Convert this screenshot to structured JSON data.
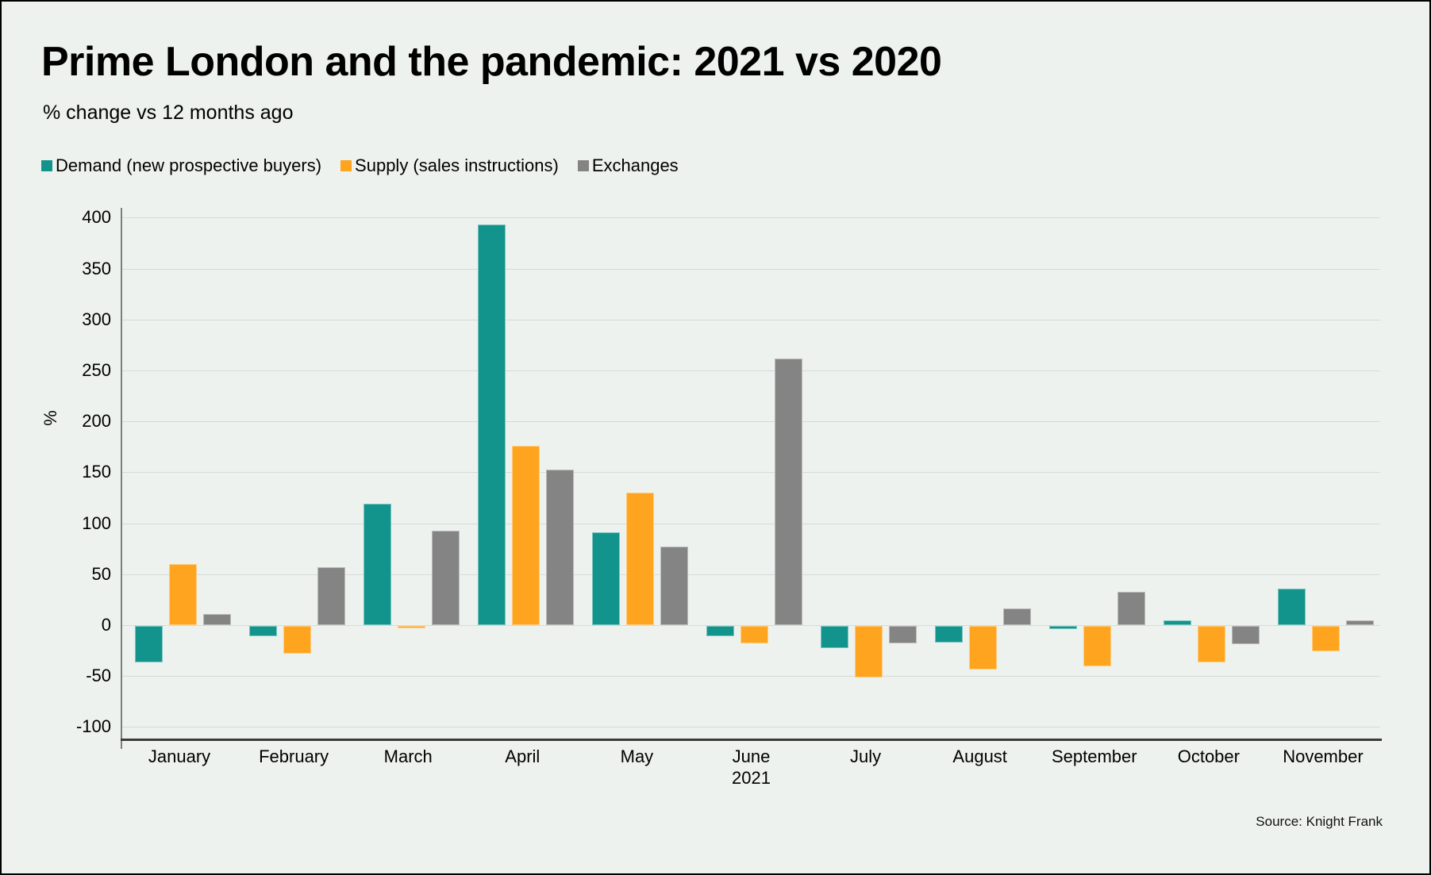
{
  "title": "Prime London and the pandemic: 2021 vs 2020",
  "subtitle": "% change vs 12 months ago",
  "source": "Source: Knight Frank",
  "colors": {
    "background": "#EDF2EF",
    "demand": "#12948C",
    "supply": "#FFA41E",
    "exchanges": "#848484",
    "gridline": "#D6DAD8",
    "axis": "#3A3A3A"
  },
  "chart_data": {
    "type": "bar",
    "title": "Prime London and the pandemic: 2021 vs 2020",
    "subtitle": "% change vs 12 months ago",
    "categories": [
      "January",
      "February",
      "March",
      "April",
      "May",
      "June",
      "July",
      "August",
      "September",
      "October",
      "November"
    ],
    "x_year_label": {
      "category": "June",
      "label": "2021"
    },
    "series": [
      {
        "name": "Demand (new prospective buyers)",
        "color": "#12948C",
        "values": [
          -36,
          -10,
          119,
          393,
          91,
          -10,
          -22,
          -16,
          -3,
          5,
          36
        ]
      },
      {
        "name": "Supply (sales instructions)",
        "color": "#FFA41E",
        "values": [
          60,
          -27,
          -2,
          176,
          130,
          -17,
          -51,
          -43,
          -40,
          -36,
          -25
        ]
      },
      {
        "name": "Exchanges",
        "color": "#848484",
        "values": [
          11,
          57,
          93,
          153,
          77,
          262,
          -17,
          16,
          33,
          -18,
          5
        ]
      }
    ],
    "ylabel": "%",
    "ylim": [
      -100,
      400
    ],
    "yticks": [
      400,
      350,
      300,
      250,
      200,
      150,
      100,
      50,
      0,
      -50,
      -100
    ],
    "grid": true,
    "legend_position": "top-left"
  }
}
